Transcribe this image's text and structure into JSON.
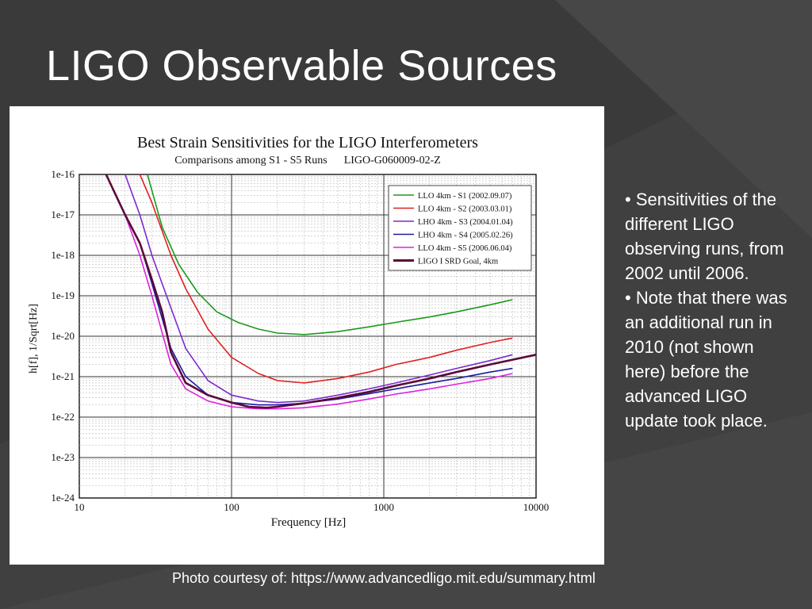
{
  "slide": {
    "title": "LIGO Observable Sources",
    "bullets": [
      "• Sensitivities of the different LIGO observing runs, from 2002 until 2006.",
      "• Note that there was an additional run in 2010 (not shown here) before the advanced LIGO update took place."
    ],
    "caption": "Photo courtesy of: https://www.advancedligo.mit.edu/summary.html",
    "colors": {
      "background": "#404040",
      "text": "#ffffff"
    }
  },
  "chart_data": {
    "type": "line",
    "title": "Best Strain Sensitivities for the LIGO Interferometers",
    "subtitle": "Comparisons among S1 - S5 Runs      LIGO-G060009-02-Z",
    "xlabel": "Frequency [Hz]",
    "ylabel": "h[f], 1/Sqrt[Hz]",
    "x_scale": "log",
    "y_scale": "log",
    "xlim": [
      10,
      10000
    ],
    "ylim": [
      1e-24,
      1e-16
    ],
    "x_ticks": [
      "10",
      "100",
      "1000",
      "10000"
    ],
    "y_ticks": [
      "1e-16",
      "1e-17",
      "1e-18",
      "1e-19",
      "1e-20",
      "1e-21",
      "1e-22",
      "1e-23",
      "1e-24"
    ],
    "grid": true,
    "legend_position": "top-right",
    "series": [
      {
        "name": "LLO 4km - S1 (2002.09.07)",
        "color": "#1a9a1a",
        "x": [
          28,
          35,
          45,
          60,
          80,
          110,
          150,
          200,
          300,
          500,
          800,
          1200,
          2000,
          3000,
          5000,
          7000
        ],
        "y": [
          1e-16,
          5e-18,
          6e-19,
          1.2e-19,
          4e-20,
          2.2e-20,
          1.5e-20,
          1.2e-20,
          1.1e-20,
          1.3e-20,
          1.7e-20,
          2.2e-20,
          3e-20,
          4e-20,
          6e-20,
          8e-20
        ]
      },
      {
        "name": "LLO 4km - S2 (2003.03.01)",
        "color": "#e02020",
        "x": [
          25,
          30,
          40,
          50,
          70,
          100,
          150,
          200,
          300,
          500,
          800,
          1200,
          2000,
          3000,
          5000,
          7000
        ],
        "y": [
          1e-16,
          2e-17,
          1e-18,
          1.5e-19,
          1.5e-20,
          3e-21,
          1.2e-21,
          8e-22,
          7e-22,
          9e-22,
          1.3e-21,
          2e-21,
          3e-21,
          4.5e-21,
          7e-21,
          9e-21
        ]
      },
      {
        "name": "LHO 4km - S3 (2004.01.04)",
        "color": "#7a2ad0",
        "x": [
          20,
          25,
          30,
          40,
          50,
          70,
          100,
          150,
          200,
          300,
          500,
          800,
          1200,
          2000,
          3000,
          5000,
          7000
        ],
        "y": [
          1e-16,
          1e-17,
          1e-18,
          5e-20,
          5e-21,
          8e-22,
          3.5e-22,
          2.5e-22,
          2.3e-22,
          2.5e-22,
          3.5e-22,
          5e-22,
          7e-22,
          1.1e-21,
          1.6e-21,
          2.5e-21,
          3.5e-21
        ]
      },
      {
        "name": "LHO 4km - S4 (2005.02.26)",
        "color": "#1a1aa0",
        "x": [
          15,
          20,
          25,
          30,
          40,
          50,
          70,
          100,
          150,
          200,
          300,
          500,
          800,
          1200,
          2000,
          3000,
          5000,
          7000
        ],
        "y": [
          1e-16,
          1e-17,
          2e-18,
          2e-19,
          5e-21,
          1e-21,
          3.5e-22,
          2.3e-22,
          2e-22,
          2e-22,
          2.2e-22,
          2.8e-22,
          3.8e-22,
          5e-22,
          7e-22,
          9e-22,
          1.3e-21,
          1.6e-21
        ]
      },
      {
        "name": "LLO 4km - S5 (2006.06.04)",
        "color": "#e020e0",
        "x": [
          15,
          20,
          25,
          30,
          40,
          50,
          70,
          100,
          150,
          200,
          300,
          500,
          800,
          1200,
          2000,
          3000,
          5000,
          7000
        ],
        "y": [
          1e-16,
          1e-17,
          1e-18,
          1e-19,
          2e-21,
          5e-22,
          2.5e-22,
          1.8e-22,
          1.6e-22,
          1.6e-22,
          1.7e-22,
          2.1e-22,
          2.8e-22,
          3.7e-22,
          5e-22,
          6.5e-22,
          9e-22,
          1.2e-21
        ]
      },
      {
        "name": "LIGO I SRD Goal, 4km",
        "color": "#5a0a3a",
        "x": [
          15,
          20,
          25,
          30,
          35,
          40,
          50,
          70,
          100,
          130,
          170,
          200,
          300,
          500,
          800,
          1200,
          2000,
          3000,
          5000,
          10000
        ],
        "y": [
          1e-16,
          1e-17,
          2e-18,
          2.5e-19,
          4e-20,
          4e-21,
          7e-22,
          3.5e-22,
          2.3e-22,
          1.8e-22,
          1.7e-22,
          1.8e-22,
          2.2e-22,
          3e-22,
          4.2e-22,
          6e-22,
          9e-22,
          1.3e-21,
          2e-21,
          3.5e-21
        ]
      }
    ]
  }
}
